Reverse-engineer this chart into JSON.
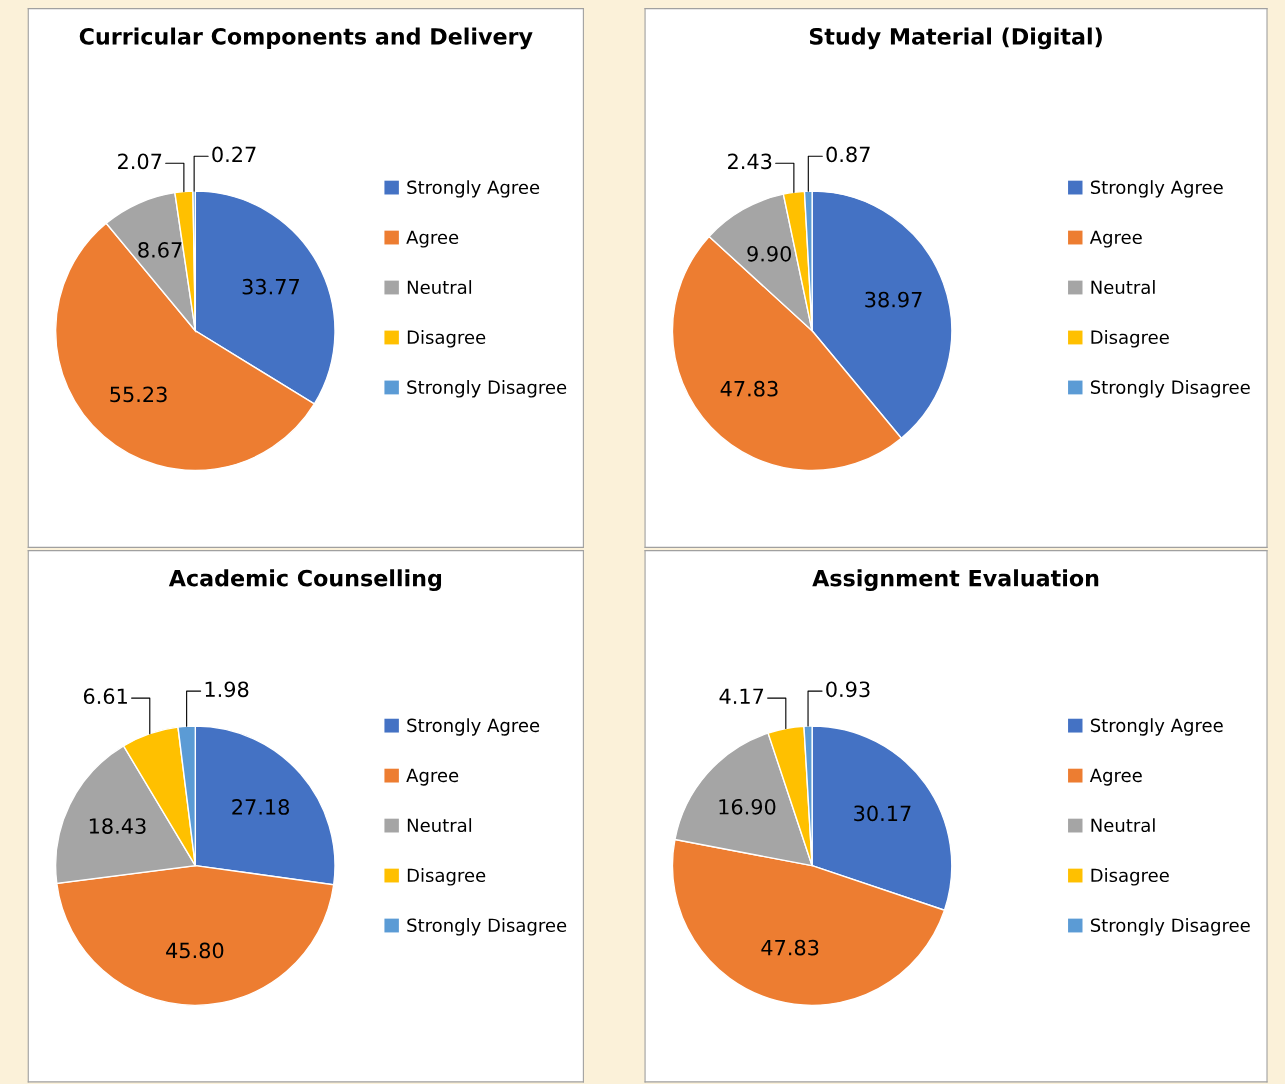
{
  "chart_data": [
    {
      "type": "pie",
      "title": "Curricular Components and Delivery",
      "categories": [
        "Strongly Agree",
        "Agree",
        "Neutral",
        "Disagree",
        "Strongly Disagree"
      ],
      "values": [
        33.77,
        55.23,
        8.67,
        2.07,
        0.27
      ],
      "value_labels": [
        "33.77",
        "55.23",
        "8.67",
        "2.07",
        "0.27"
      ],
      "colors": [
        "#4472c4",
        "#ed7d31",
        "#a5a5a5",
        "#ffc000",
        "#5b9bd5"
      ],
      "legend": "right"
    },
    {
      "type": "pie",
      "title": "Study Material (Digital)",
      "categories": [
        "Strongly Agree",
        "Agree",
        "Neutral",
        "Disagree",
        "Strongly Disagree"
      ],
      "values": [
        38.97,
        47.83,
        9.9,
        2.43,
        0.87
      ],
      "value_labels": [
        "38.97",
        "47.83",
        "9.90",
        "2.43",
        "0.87"
      ],
      "colors": [
        "#4472c4",
        "#ed7d31",
        "#a5a5a5",
        "#ffc000",
        "#5b9bd5"
      ],
      "legend": "right"
    },
    {
      "type": "pie",
      "title": "Academic Counselling",
      "categories": [
        "Strongly Agree",
        "Agree",
        "Neutral",
        "Disagree",
        "Strongly Disagree"
      ],
      "values": [
        27.18,
        45.8,
        18.43,
        6.61,
        1.98
      ],
      "value_labels": [
        "27.18",
        "45.80",
        "18.43",
        "6.61",
        "1.98"
      ],
      "colors": [
        "#4472c4",
        "#ed7d31",
        "#a5a5a5",
        "#ffc000",
        "#5b9bd5"
      ],
      "legend": "right"
    },
    {
      "type": "pie",
      "title": "Assignment Evaluation",
      "categories": [
        "Strongly Agree",
        "Agree",
        "Neutral",
        "Disagree",
        "Strongly Disagree"
      ],
      "values": [
        30.17,
        47.83,
        16.9,
        4.17,
        0.93
      ],
      "value_labels": [
        "30.17",
        "47.83",
        "16.90",
        "4.17",
        "0.93"
      ],
      "colors": [
        "#4472c4",
        "#ed7d31",
        "#a5a5a5",
        "#ffc000",
        "#5b9bd5"
      ],
      "legend": "right"
    }
  ]
}
